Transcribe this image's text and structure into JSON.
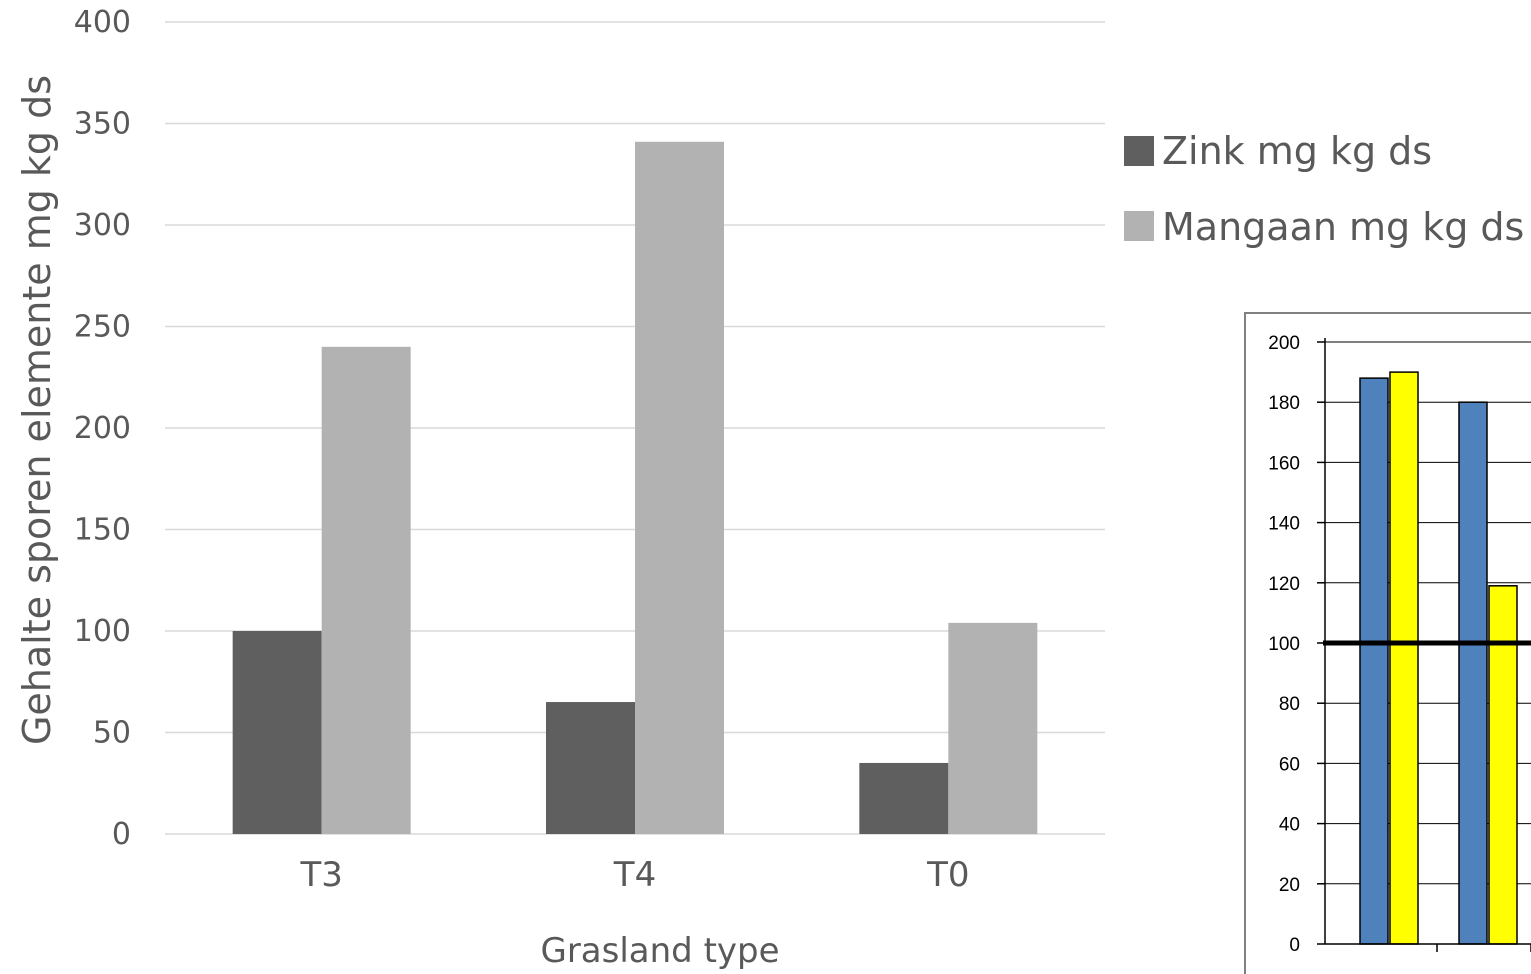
{
  "chart_data": [
    {
      "type": "bar",
      "title": "",
      "xlabel": "Grasland type",
      "ylabel": "Gehalte sporen elemente mg kg ds",
      "categories": [
        "T3",
        "T4",
        "T0"
      ],
      "ylim": [
        0,
        400
      ],
      "yticks": [
        "0",
        "50",
        "100",
        "150",
        "200",
        "250",
        "300",
        "350",
        "400"
      ],
      "grid": true,
      "legend_position": "right",
      "series": [
        {
          "name": "Zink mg kg ds",
          "color": "#5f5f5f",
          "values": [
            100,
            65,
            35
          ]
        },
        {
          "name": "Mangaan mg kg ds",
          "color": "#b2b2b2",
          "values": [
            240,
            341,
            104
          ]
        }
      ]
    },
    {
      "type": "bar",
      "title": "",
      "xlabel": "",
      "ylabel": "",
      "partially_visible": true,
      "ylim": [
        0,
        200
      ],
      "yticks": [
        "0",
        "20",
        "40",
        "60",
        "80",
        "100",
        "120",
        "140",
        "160",
        "180",
        "200"
      ],
      "grid": true,
      "reference_line": 100,
      "series": [
        {
          "color": "#4f81bd",
          "values": [
            188,
            180
          ]
        },
        {
          "color": "#ffff00",
          "values": [
            190,
            119
          ]
        }
      ]
    }
  ]
}
